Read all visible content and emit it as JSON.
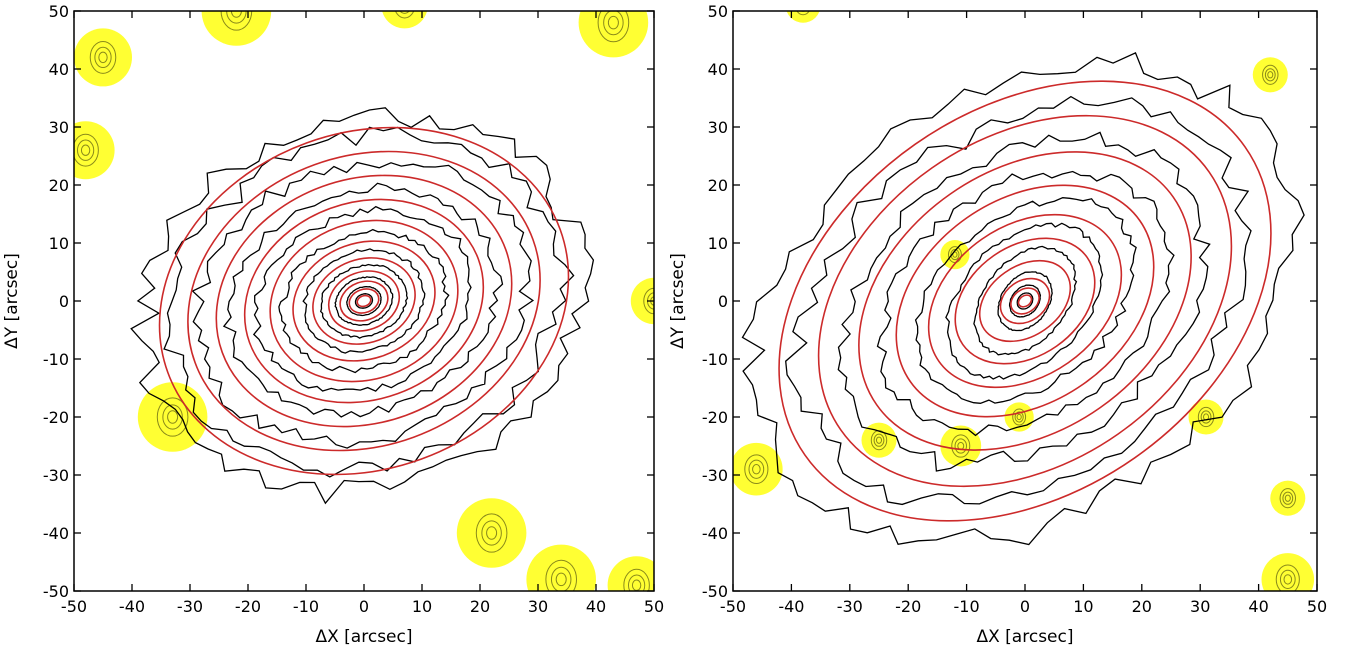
{
  "chart_data": [
    {
      "type": "contour",
      "panel": "left",
      "xlabel": "ΔX [arcsec]",
      "ylabel": "ΔY [arcsec]",
      "xlim": [
        -50,
        50
      ],
      "ylim": [
        -50,
        50
      ],
      "xticks": [
        -50,
        -40,
        -30,
        -20,
        -10,
        0,
        10,
        20,
        30,
        40,
        50
      ],
      "yticks": [
        -50,
        -40,
        -30,
        -20,
        -10,
        0,
        10,
        20,
        30,
        40,
        50
      ],
      "colors": {
        "isophote": "#000000",
        "ellipse_fit": "#cc2a2a",
        "mask": "#ffff33",
        "mask_contour": "#8a8a1a"
      },
      "ellipses": [
        {
          "a": 1.2,
          "b": 0.9,
          "pa_deg": 20
        },
        {
          "a": 2.6,
          "b": 2.0,
          "pa_deg": 20
        },
        {
          "a": 4.2,
          "b": 3.3,
          "pa_deg": 20
        },
        {
          "a": 6.2,
          "b": 5.0,
          "pa_deg": 20
        },
        {
          "a": 9.0,
          "b": 7.2,
          "pa_deg": 20
        },
        {
          "a": 12.5,
          "b": 10.0,
          "pa_deg": 20
        },
        {
          "a": 16.5,
          "b": 13.5,
          "pa_deg": 20
        },
        {
          "a": 21.0,
          "b": 17.0,
          "pa_deg": 20
        },
        {
          "a": 26.0,
          "b": 21.0,
          "pa_deg": 20
        },
        {
          "a": 31.0,
          "b": 25.0,
          "pa_deg": 20
        },
        {
          "a": 36.0,
          "b": 29.0,
          "pa_deg": 20
        }
      ],
      "isophotes": [
        {
          "a": 1.5,
          "b": 1.2,
          "pa_deg": 20
        },
        {
          "a": 3.0,
          "b": 2.4,
          "pa_deg": 20
        },
        {
          "a": 5.0,
          "b": 4.0,
          "pa_deg": 20
        },
        {
          "a": 7.5,
          "b": 6.0,
          "pa_deg": 20
        },
        {
          "a": 10.5,
          "b": 8.5,
          "pa_deg": 20
        },
        {
          "a": 14.5,
          "b": 11.5,
          "pa_deg": 20
        },
        {
          "a": 19.0,
          "b": 15.0,
          "pa_deg": 20
        },
        {
          "a": 23.5,
          "b": 19.0,
          "pa_deg": 20
        },
        {
          "a": 29.0,
          "b": 23.5,
          "pa_deg": 20
        },
        {
          "a": 34.5,
          "b": 28.0,
          "pa_deg": 20
        },
        {
          "a": 38.5,
          "b": 31.5,
          "pa_deg": 20
        }
      ],
      "masks": [
        {
          "x": -22,
          "y": 50,
          "r": 6
        },
        {
          "x": 7,
          "y": 51,
          "r": 4
        },
        {
          "x": 43,
          "y": 48,
          "r": 6
        },
        {
          "x": -45,
          "y": 42,
          "r": 5
        },
        {
          "x": -48,
          "y": 26,
          "r": 5
        },
        {
          "x": 50,
          "y": 0,
          "r": 4
        },
        {
          "x": -33,
          "y": -20,
          "r": 6
        },
        {
          "x": 22,
          "y": -40,
          "r": 6
        },
        {
          "x": 34,
          "y": -48,
          "r": 6
        },
        {
          "x": 47,
          "y": -49,
          "r": 5
        }
      ]
    },
    {
      "type": "contour",
      "panel": "right",
      "xlabel": "ΔX [arcsec]",
      "ylabel": "ΔY [arcsec]",
      "xlim": [
        -50,
        50
      ],
      "ylim": [
        -50,
        50
      ],
      "xticks": [
        -50,
        -40,
        -30,
        -20,
        -10,
        0,
        10,
        20,
        30,
        40,
        50
      ],
      "yticks": [
        -50,
        -40,
        -30,
        -20,
        -10,
        0,
        10,
        20,
        30,
        40,
        50
      ],
      "colors": {
        "isophote": "#000000",
        "ellipse_fit": "#cc2a2a",
        "mask": "#ffff33",
        "mask_contour": "#8a8a1a"
      },
      "ellipses": [
        {
          "a": 1.2,
          "b": 0.9,
          "pa_deg": 35
        },
        {
          "a": 2.6,
          "b": 2.0,
          "pa_deg": 35
        },
        {
          "a": 4.5,
          "b": 3.5,
          "pa_deg": 35
        },
        {
          "a": 8.5,
          "b": 6.0,
          "pa_deg": 35
        },
        {
          "a": 13.0,
          "b": 9.5,
          "pa_deg": 35
        },
        {
          "a": 18.0,
          "b": 13.0,
          "pa_deg": 35
        },
        {
          "a": 24.0,
          "b": 17.5,
          "pa_deg": 35
        },
        {
          "a": 31.0,
          "b": 22.5,
          "pa_deg": 35
        },
        {
          "a": 38.5,
          "b": 28.0,
          "pa_deg": 35
        },
        {
          "a": 46.0,
          "b": 33.0,
          "pa_deg": 35
        }
      ],
      "isophotes": [
        {
          "a": 1.5,
          "b": 1.2,
          "pa_deg": 50
        },
        {
          "a": 3.0,
          "b": 2.3,
          "pa_deg": 50
        },
        {
          "a": 5.5,
          "b": 4.0,
          "pa_deg": 55
        },
        {
          "a": 10.5,
          "b": 7.0,
          "pa_deg": 50
        },
        {
          "a": 15.5,
          "b": 10.5,
          "pa_deg": 45
        },
        {
          "a": 21.0,
          "b": 14.5,
          "pa_deg": 40
        },
        {
          "a": 27.0,
          "b": 19.5,
          "pa_deg": 35
        },
        {
          "a": 34.0,
          "b": 24.5,
          "pa_deg": 35
        },
        {
          "a": 42.0,
          "b": 30.0,
          "pa_deg": 35
        },
        {
          "a": 50.0,
          "b": 36.0,
          "pa_deg": 35
        }
      ],
      "masks": [
        {
          "x": -38,
          "y": 51,
          "r": 3
        },
        {
          "x": 42,
          "y": 39,
          "r": 3
        },
        {
          "x": -12,
          "y": 8,
          "r": 2.5
        },
        {
          "x": -25,
          "y": -24,
          "r": 3
        },
        {
          "x": -11,
          "y": -25,
          "r": 3.5
        },
        {
          "x": -1,
          "y": -20,
          "r": 2.5
        },
        {
          "x": 31,
          "y": -20,
          "r": 3
        },
        {
          "x": -46,
          "y": -29,
          "r": 4.5
        },
        {
          "x": 45,
          "y": -34,
          "r": 3
        },
        {
          "x": 45,
          "y": -48,
          "r": 4.5
        }
      ]
    }
  ]
}
